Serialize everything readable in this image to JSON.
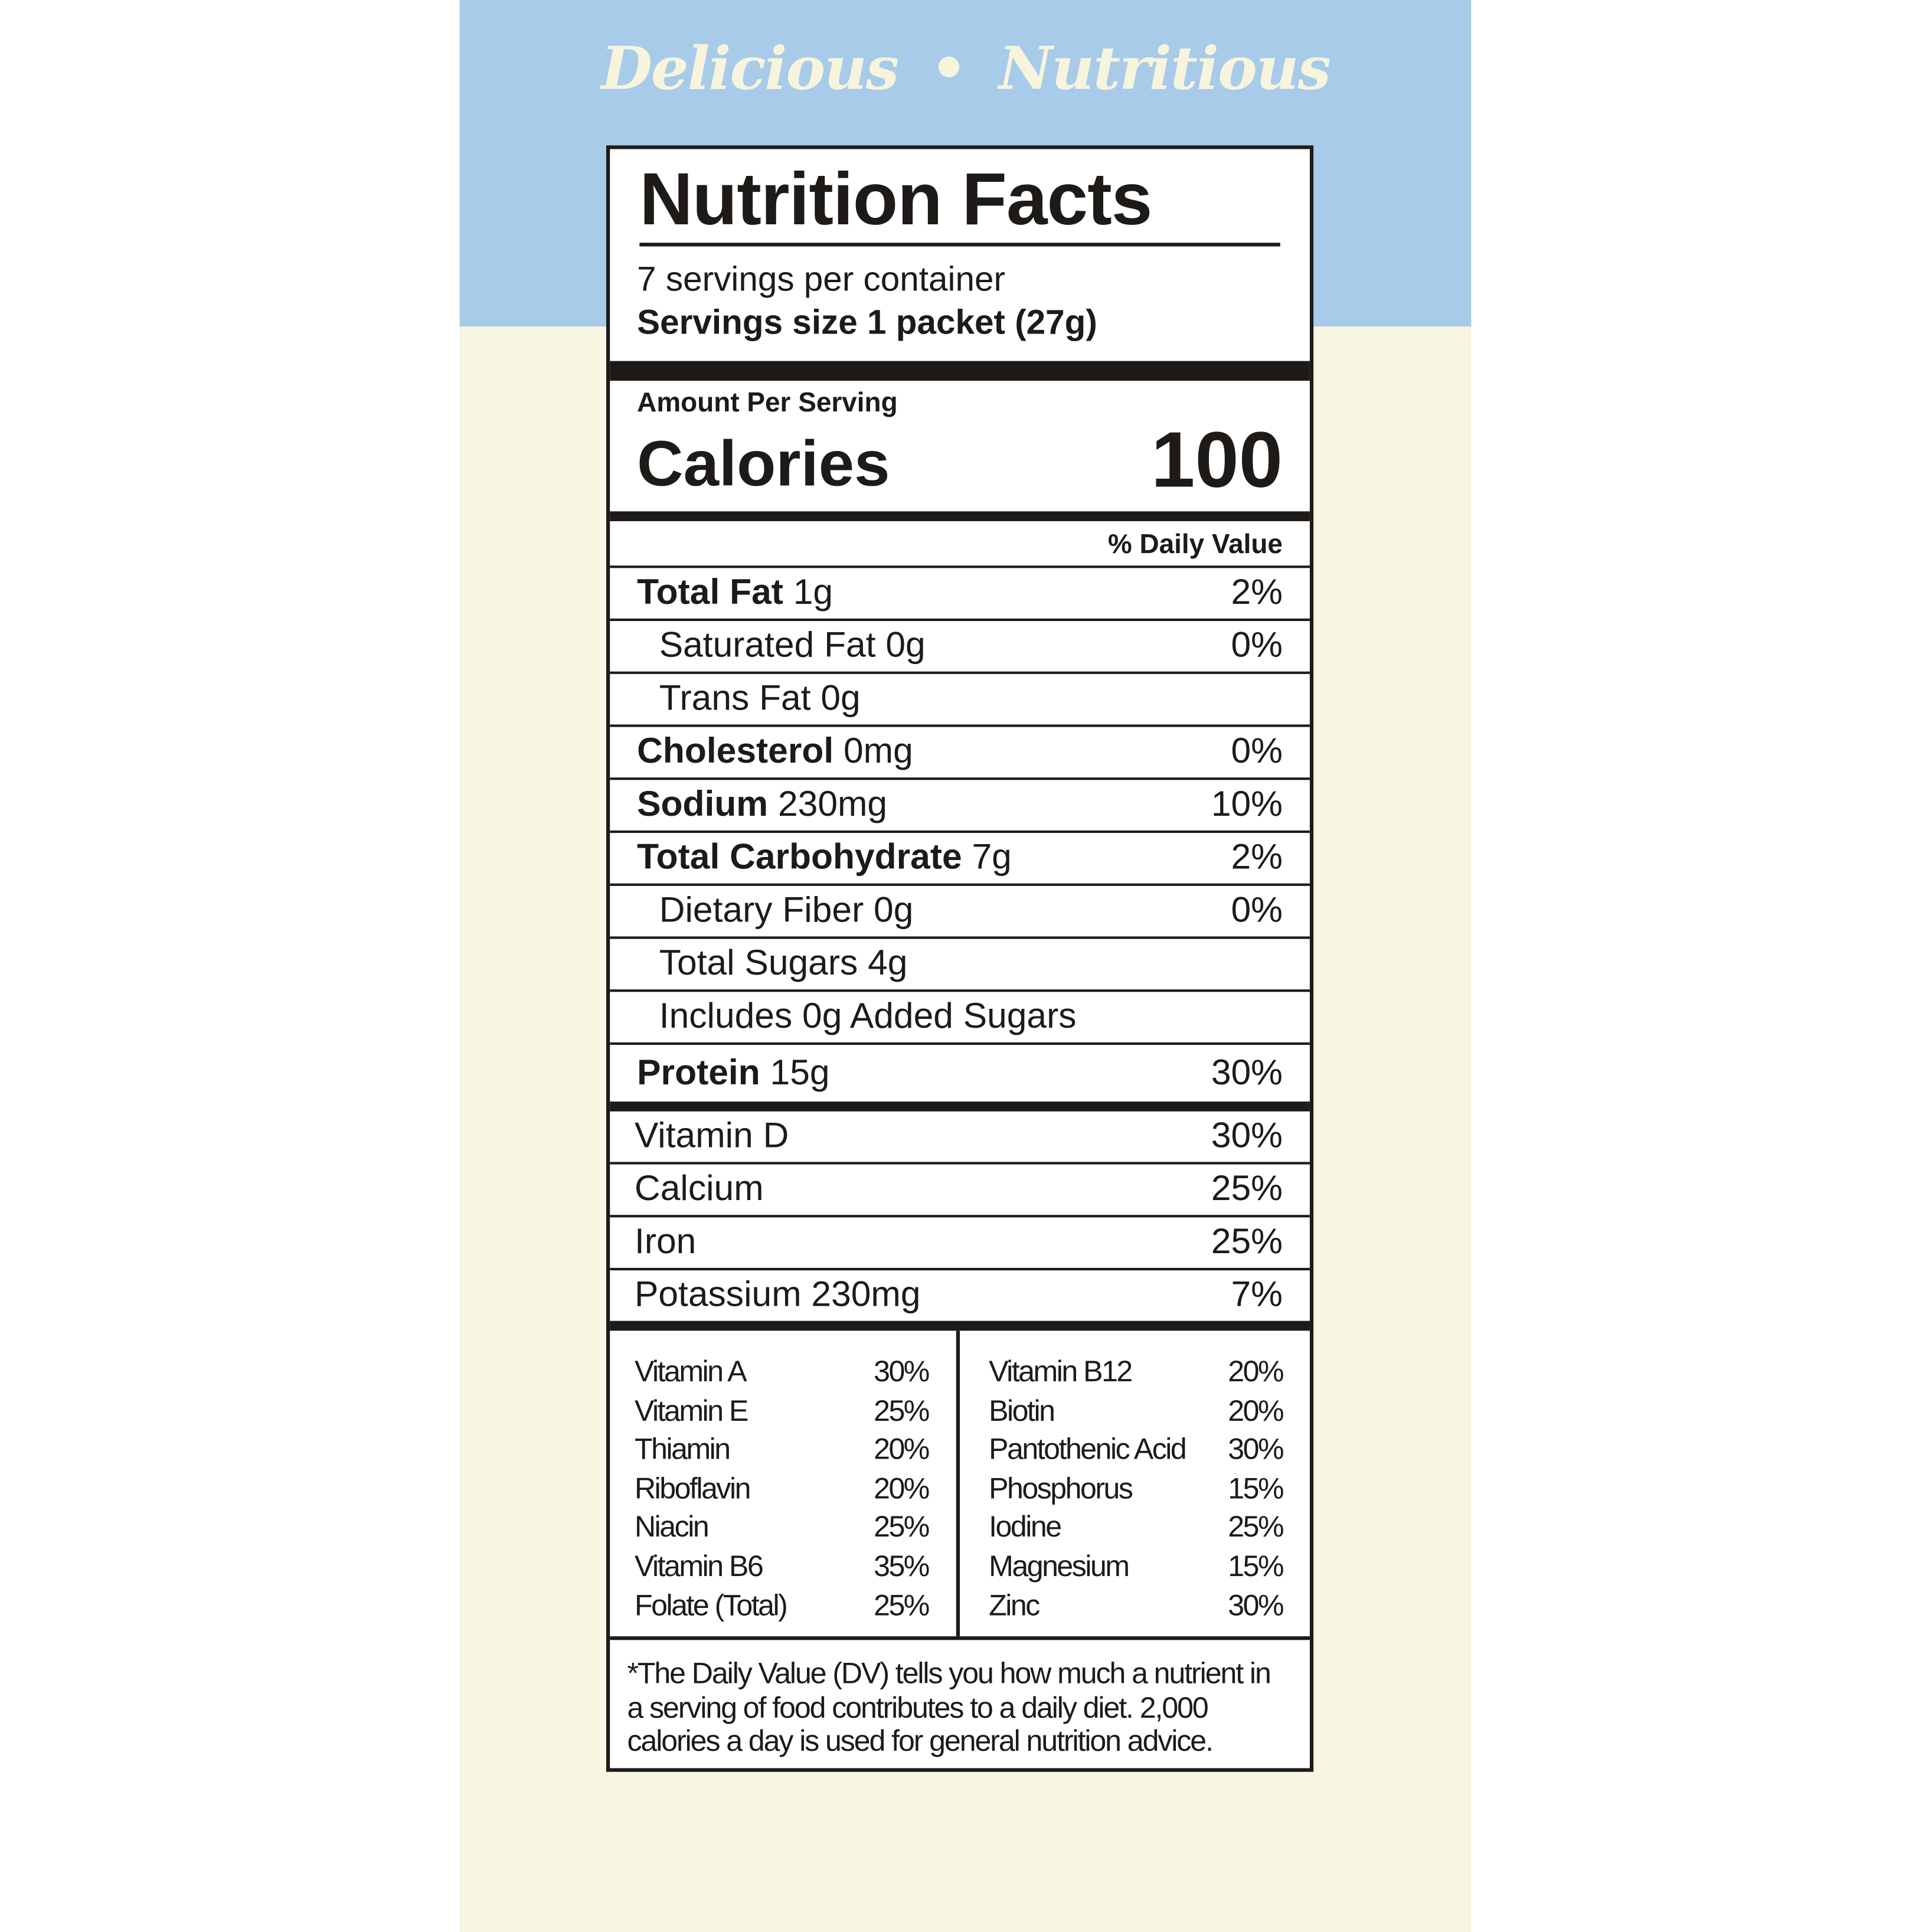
{
  "tagline": {
    "left": "Delicious",
    "separator": "•",
    "right": "Nutritious"
  },
  "colors": {
    "sky": "#a7cbe9",
    "cream": "#f8f6e2",
    "ink": "#1d1a18"
  },
  "label": {
    "title": "Nutrition Facts",
    "servings_per_container": "7 servings per container",
    "serving_size": "Servings size 1 packet (27g)",
    "amount_per_serving": "Amount Per Serving",
    "calories_label": "Calories",
    "calories_value": "100",
    "dv_header": "% Daily Value",
    "nutrients": [
      {
        "name": "Total Fat",
        "amount": " 1g",
        "dv": "2%"
      },
      {
        "name": "Saturated Fat 0g",
        "amount": "",
        "dv": "0%"
      },
      {
        "name": "Trans Fat 0g",
        "amount": "",
        "dv": ""
      },
      {
        "name": "Cholesterol",
        "amount": " 0mg",
        "dv": "0%"
      },
      {
        "name": "Sodium",
        "amount": " 230mg",
        "dv": "10%"
      },
      {
        "name": "Total Carbohydrate",
        "amount": " 7g",
        "dv": "2%"
      },
      {
        "name": "Dietary Fiber 0g",
        "amount": "",
        "dv": "0%"
      },
      {
        "name": "Total Sugars 4g",
        "amount": "",
        "dv": ""
      },
      {
        "name": "Includes 0g Added Sugars",
        "amount": "",
        "dv": ""
      },
      {
        "name": "Protein",
        "amount": " 15g",
        "dv": "30%"
      }
    ],
    "vitamins": [
      {
        "name": "Vitamin D",
        "dv": "30%"
      },
      {
        "name": "Calcium",
        "dv": "25%"
      },
      {
        "name": "Iron",
        "dv": "25%"
      },
      {
        "name": "Potassium 230mg",
        "dv": "7%"
      }
    ],
    "micros_left": [
      {
        "name": "Vitamin A",
        "dv": "30%"
      },
      {
        "name": "Vitamin E",
        "dv": "25%"
      },
      {
        "name": "Thiamin",
        "dv": "20%"
      },
      {
        "name": "Riboflavin",
        "dv": "20%"
      },
      {
        "name": "Niacin",
        "dv": "25%"
      },
      {
        "name": "Vitamin B6",
        "dv": "35%"
      },
      {
        "name": "Folate (Total)",
        "dv": "25%"
      }
    ],
    "micros_right": [
      {
        "name": "Vitamin B12",
        "dv": "20%"
      },
      {
        "name": "Biotin",
        "dv": "20%"
      },
      {
        "name": "Pantothenic Acid",
        "dv": "30%"
      },
      {
        "name": "Phosphorus",
        "dv": "15%"
      },
      {
        "name": "Iodine",
        "dv": "25%"
      },
      {
        "name": "Magnesium",
        "dv": "15%"
      },
      {
        "name": "Zinc",
        "dv": "30%"
      }
    ],
    "footnote": "*The Daily Value (DV) tells you how much a nutrient in a serving of food contributes to a daily diet. 2,000 calories a day is used for general nutrition advice."
  }
}
